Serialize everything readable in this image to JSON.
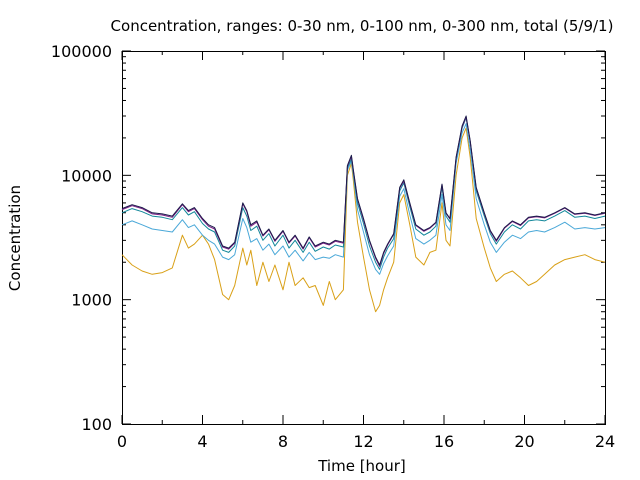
{
  "chart_data": {
    "type": "line",
    "title": "Concentration, ranges: 0-30 nm, 0-100 nm, 0-300 nm, total (5/9/1)",
    "xlabel": "Time [hour]",
    "ylabel": "Concentration",
    "xlim": [
      0,
      24
    ],
    "ylim": [
      100,
      100000
    ],
    "yscale": "log",
    "grid": false,
    "x_ticks": [
      0,
      4,
      8,
      12,
      16,
      20,
      24
    ],
    "x_tick_labels": [
      "0",
      "4",
      "8",
      "12",
      "16",
      "20",
      "24"
    ],
    "y_ticks": [
      100,
      1000,
      10000,
      100000
    ],
    "y_tick_labels": [
      "100",
      "1000",
      "10000",
      "100000"
    ],
    "x": [
      0,
      0.5,
      1,
      1.5,
      2,
      2.5,
      3,
      3.3,
      3.6,
      4,
      4.3,
      4.6,
      5,
      5.3,
      5.6,
      6,
      6.2,
      6.4,
      6.7,
      7,
      7.3,
      7.6,
      8,
      8.3,
      8.6,
      9,
      9.3,
      9.6,
      10,
      10.3,
      10.6,
      11,
      11.2,
      11.4,
      11.5,
      11.7,
      12,
      12.3,
      12.6,
      12.8,
      13,
      13.2,
      13.5,
      13.8,
      14,
      14.3,
      14.6,
      15,
      15.3,
      15.6,
      15.9,
      16.1,
      16.3,
      16.6,
      16.9,
      17.1,
      17.3,
      17.6,
      18,
      18.3,
      18.6,
      19,
      19.4,
      19.8,
      20.2,
      20.6,
      21,
      21.5,
      22,
      22.5,
      23,
      23.5,
      24
    ],
    "series": [
      {
        "color": "#1b1b4a",
        "values": [
          5400,
          5800,
          5500,
          5000,
          4900,
          4700,
          5900,
          5200,
          5500,
          4500,
          4000,
          3800,
          2700,
          2600,
          2900,
          6000,
          5200,
          4000,
          4300,
          3300,
          3700,
          3000,
          3600,
          2900,
          3300,
          2600,
          3200,
          2700,
          2900,
          2800,
          3000,
          2900,
          12000,
          14500,
          11000,
          6500,
          4500,
          3000,
          2200,
          1900,
          2400,
          2800,
          3400,
          8000,
          9200,
          6000,
          4000,
          3600,
          3800,
          4200,
          8500,
          5000,
          4500,
          14000,
          25000,
          30000,
          19000,
          8000,
          5000,
          3600,
          3000,
          3800,
          4300,
          4000,
          4600,
          4700,
          4600,
          5000,
          5500,
          4900,
          5000,
          4800,
          5000
        ]
      },
      {
        "color": "#7a1f86",
        "values": [
          5300,
          5700,
          5400,
          4900,
          4800,
          4600,
          5800,
          5100,
          5400,
          4400,
          3900,
          3700,
          2650,
          2550,
          2850,
          5900,
          5100,
          3900,
          4200,
          3250,
          3650,
          2950,
          3550,
          2850,
          3250,
          2550,
          3150,
          2650,
          2850,
          2750,
          2950,
          2850,
          11800,
          14200,
          10800,
          6400,
          4400,
          2950,
          2150,
          1850,
          2350,
          2750,
          3350,
          7900,
          9000,
          5900,
          3950,
          3550,
          3750,
          4150,
          8400,
          4950,
          4450,
          13800,
          24500,
          29500,
          18700,
          7900,
          4950,
          3550,
          2950,
          3750,
          4250,
          3950,
          4550,
          4650,
          4550,
          4950,
          5450,
          4850,
          4950,
          4750,
          4950
        ]
      },
      {
        "color": "#12879a",
        "values": [
          5000,
          5400,
          5100,
          4700,
          4600,
          4400,
          5500,
          4800,
          5100,
          4100,
          3700,
          3500,
          2500,
          2400,
          2700,
          5500,
          4700,
          3600,
          3900,
          3000,
          3400,
          2700,
          3300,
          2600,
          3000,
          2400,
          2900,
          2450,
          2650,
          2550,
          2750,
          2650,
          11500,
          13500,
          10500,
          6000,
          4100,
          2700,
          2000,
          1750,
          2200,
          2600,
          3100,
          7500,
          8700,
          5600,
          3700,
          3300,
          3500,
          3900,
          8000,
          4700,
          4200,
          13500,
          24000,
          29000,
          18500,
          7500,
          4700,
          3400,
          2800,
          3500,
          4000,
          3700,
          4300,
          4400,
          4300,
          4700,
          5200,
          4600,
          4700,
          4500,
          4700
        ]
      },
      {
        "color": "#4aa8d8",
        "values": [
          4000,
          4300,
          4000,
          3700,
          3600,
          3500,
          4400,
          3800,
          4000,
          3300,
          3000,
          2800,
          2200,
          2100,
          2300,
          4500,
          3800,
          2900,
          3100,
          2500,
          2800,
          2300,
          2700,
          2200,
          2500,
          2050,
          2400,
          2100,
          2200,
          2150,
          2300,
          2200,
          11000,
          13000,
          10000,
          5300,
          3500,
          2300,
          1750,
          1600,
          1950,
          2250,
          2700,
          6800,
          7800,
          4800,
          3100,
          2800,
          3000,
          3300,
          7000,
          4000,
          3600,
          12500,
          22000,
          26000,
          16000,
          6500,
          4000,
          2900,
          2400,
          2900,
          3300,
          3100,
          3500,
          3600,
          3500,
          3800,
          4200,
          3700,
          3800,
          3700,
          3800
        ]
      },
      {
        "color": "#d9a017",
        "values": [
          2300,
          1900,
          1700,
          1600,
          1650,
          1800,
          3300,
          2600,
          2800,
          3300,
          2800,
          2100,
          1100,
          1000,
          1300,
          2600,
          1900,
          2500,
          1300,
          2000,
          1400,
          1900,
          1200,
          2000,
          1300,
          1500,
          1250,
          1300,
          900,
          1400,
          1000,
          1200,
          10000,
          12500,
          9000,
          4200,
          2200,
          1200,
          800,
          900,
          1200,
          1500,
          2000,
          6000,
          7000,
          4000,
          2200,
          1900,
          2400,
          2500,
          6000,
          3000,
          2700,
          10000,
          20000,
          24000,
          14000,
          4500,
          2600,
          1800,
          1400,
          1600,
          1700,
          1500,
          1300,
          1400,
          1600,
          1900,
          2100,
          2200,
          2300,
          2100,
          2000
        ]
      }
    ]
  }
}
